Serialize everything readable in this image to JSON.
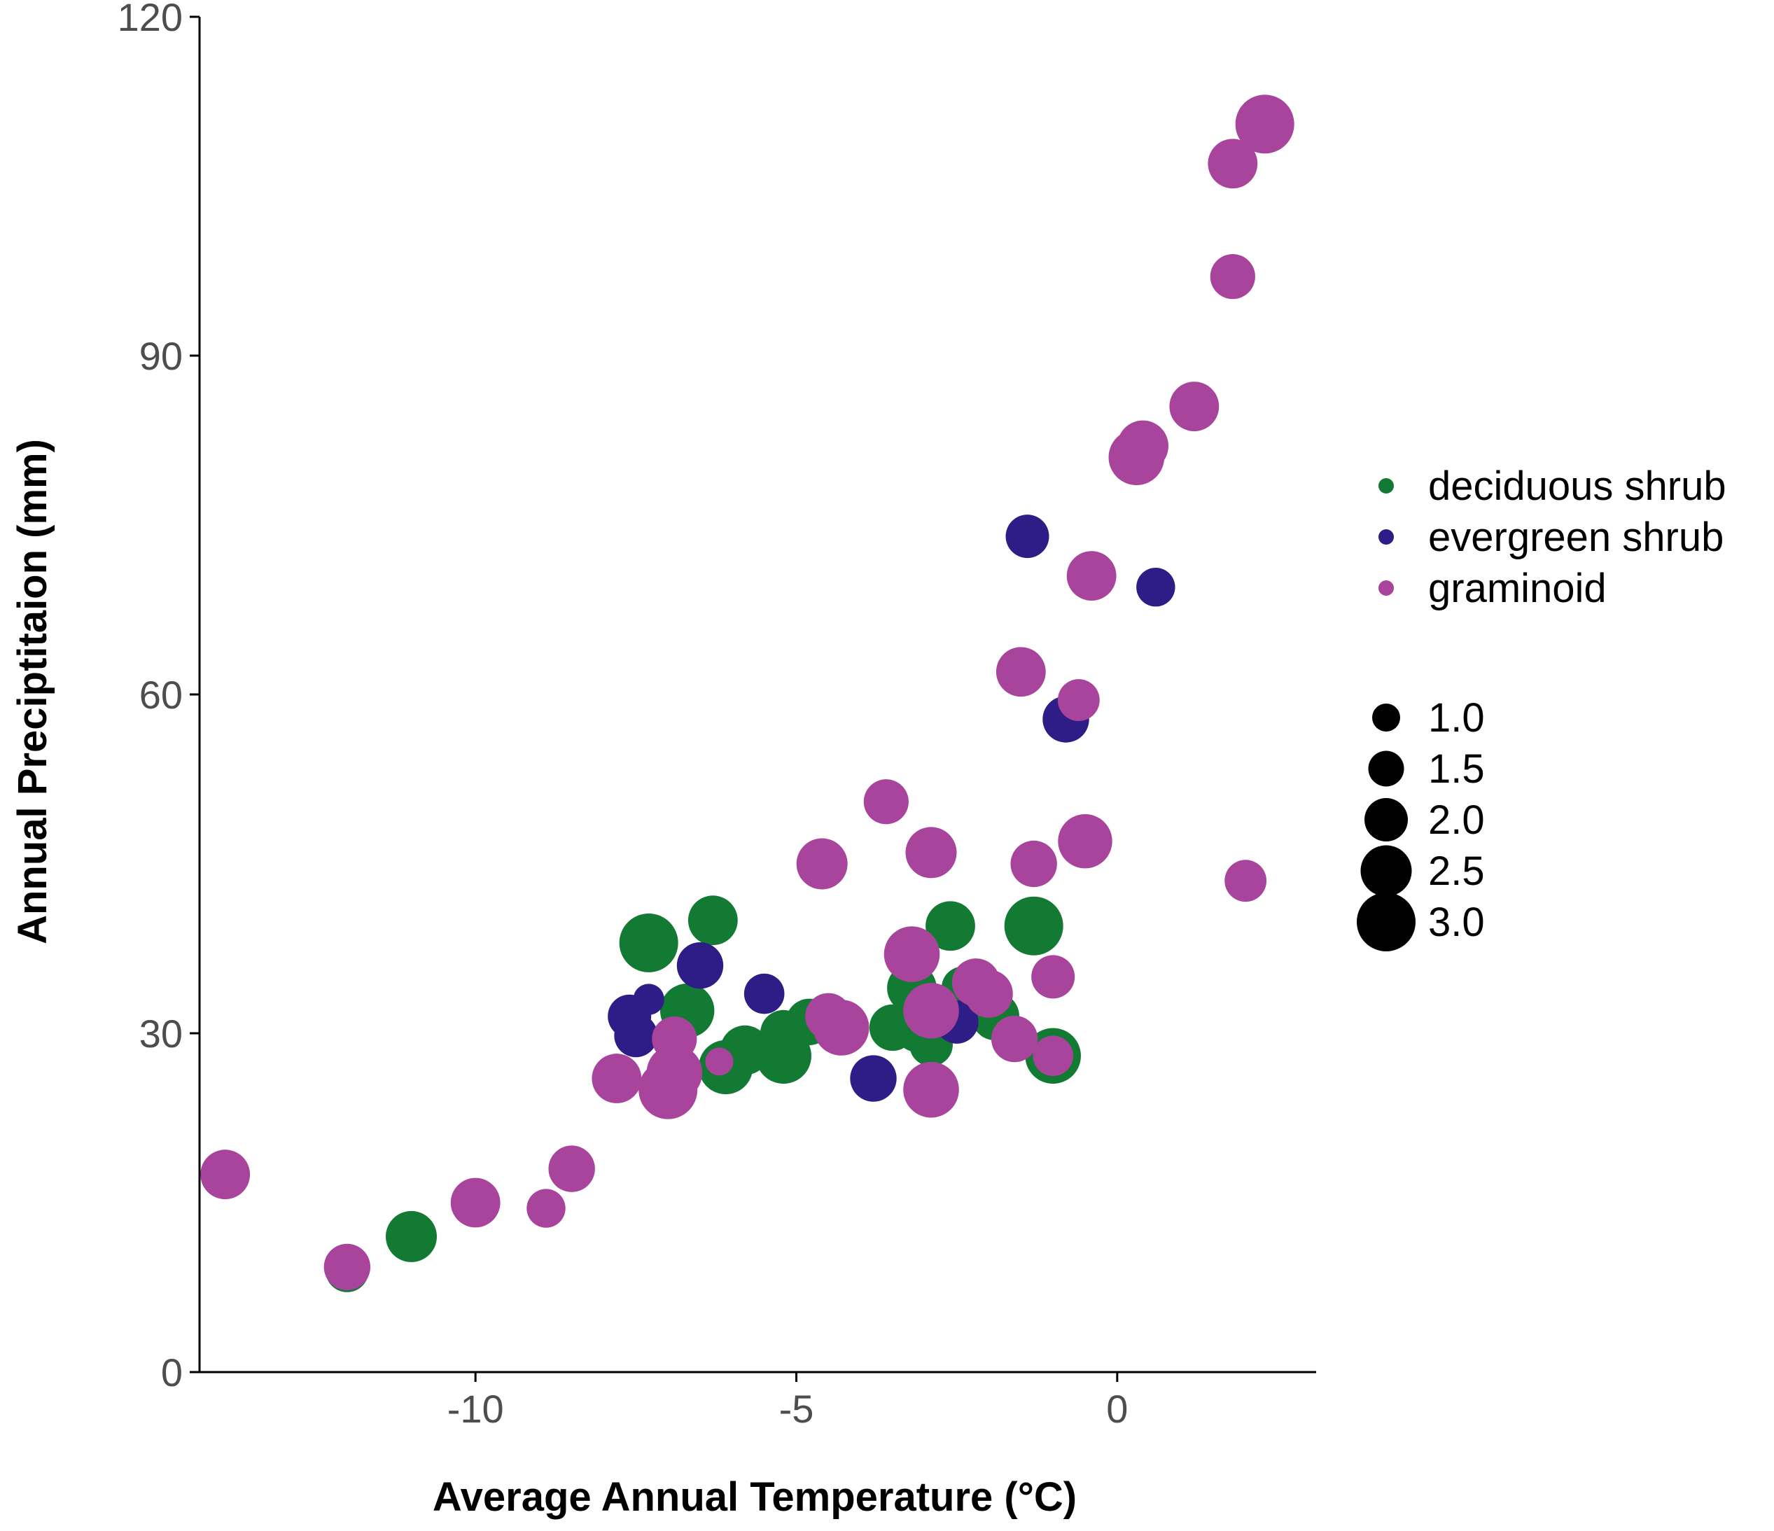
{
  "chart_data": {
    "type": "scatter",
    "xlabel": "Average Annual Temperature (°C)",
    "ylabel": "Annual Preciptitaion (mm)",
    "xlim": [
      -14.3,
      3.1
    ],
    "ylim": [
      0,
      120
    ],
    "x_ticks": [
      -10,
      -5,
      0
    ],
    "x_tick_labels": [
      "-10",
      "-5",
      "0"
    ],
    "y_ticks": [
      0,
      30,
      60,
      90,
      120
    ],
    "y_tick_labels": [
      "0",
      "30",
      "60",
      "90",
      "120"
    ],
    "grid": false,
    "legend_position": "right",
    "colors": {
      "deciduous shrub": "#137a33",
      "evergreen shrub": "#2e1d86",
      "graminoid": "#a8449b"
    },
    "size_legend": {
      "values": [
        1.0,
        1.5,
        2.0,
        2.5,
        3.0
      ],
      "labels": [
        "1.0",
        "1.5",
        "2.0",
        "2.5",
        "3.0"
      ]
    },
    "series": [
      {
        "name": "deciduous shrub",
        "points": [
          {
            "x": -12.0,
            "y": 9.0,
            "size": 2.0
          },
          {
            "x": -11.0,
            "y": 12.0,
            "size": 2.5
          },
          {
            "x": -7.5,
            "y": 30.0,
            "size": 1.8
          },
          {
            "x": -7.3,
            "y": 38.0,
            "size": 3.0
          },
          {
            "x": -6.7,
            "y": 32.0,
            "size": 2.7
          },
          {
            "x": -6.3,
            "y": 40.0,
            "size": 2.4
          },
          {
            "x": -6.1,
            "y": 27.0,
            "size": 2.7
          },
          {
            "x": -5.8,
            "y": 28.5,
            "size": 2.4
          },
          {
            "x": -5.2,
            "y": 30.0,
            "size": 2.2
          },
          {
            "x": -5.2,
            "y": 28.0,
            "size": 2.8
          },
          {
            "x": -4.8,
            "y": 31.0,
            "size": 2.2
          },
          {
            "x": -3.5,
            "y": 30.5,
            "size": 2.2
          },
          {
            "x": -3.2,
            "y": 34.0,
            "size": 2.4
          },
          {
            "x": -3.1,
            "y": 30.5,
            "size": 2.4
          },
          {
            "x": -2.9,
            "y": 29.0,
            "size": 2.0
          },
          {
            "x": -2.6,
            "y": 39.5,
            "size": 2.4
          },
          {
            "x": -2.4,
            "y": 34.0,
            "size": 2.0
          },
          {
            "x": -1.9,
            "y": 31.5,
            "size": 2.3
          },
          {
            "x": -1.3,
            "y": 39.5,
            "size": 3.0
          },
          {
            "x": -1.0,
            "y": 28.0,
            "size": 2.8
          }
        ]
      },
      {
        "name": "evergreen shrub",
        "points": [
          {
            "x": -7.6,
            "y": 31.5,
            "size": 2.0
          },
          {
            "x": -7.5,
            "y": 29.8,
            "size": 2.0
          },
          {
            "x": -7.3,
            "y": 33.0,
            "size": 1.2
          },
          {
            "x": -6.5,
            "y": 36.0,
            "size": 2.2
          },
          {
            "x": -5.5,
            "y": 33.5,
            "size": 1.8
          },
          {
            "x": -3.8,
            "y": 26.0,
            "size": 2.2
          },
          {
            "x": -2.5,
            "y": 31.0,
            "size": 2.0
          },
          {
            "x": -1.4,
            "y": 74.0,
            "size": 2.0
          },
          {
            "x": -0.8,
            "y": 57.8,
            "size": 2.2
          },
          {
            "x": 0.6,
            "y": 69.5,
            "size": 1.7
          }
        ]
      },
      {
        "name": "graminoid",
        "points": [
          {
            "x": -13.9,
            "y": 17.5,
            "size": 2.4
          },
          {
            "x": -12.0,
            "y": 9.3,
            "size": 2.2
          },
          {
            "x": -10.0,
            "y": 15.0,
            "size": 2.4
          },
          {
            "x": -8.9,
            "y": 14.5,
            "size": 1.7
          },
          {
            "x": -8.5,
            "y": 18.0,
            "size": 2.2
          },
          {
            "x": -7.8,
            "y": 26.0,
            "size": 2.4
          },
          {
            "x": -7.0,
            "y": 25.0,
            "size": 3.0
          },
          {
            "x": -6.9,
            "y": 29.5,
            "size": 2.1
          },
          {
            "x": -6.9,
            "y": 26.5,
            "size": 2.8
          },
          {
            "x": -6.2,
            "y": 27.5,
            "size": 1.0
          },
          {
            "x": -4.6,
            "y": 45.0,
            "size": 2.5
          },
          {
            "x": -4.5,
            "y": 31.5,
            "size": 2.2
          },
          {
            "x": -4.3,
            "y": 30.5,
            "size": 2.8
          },
          {
            "x": -3.6,
            "y": 50.5,
            "size": 2.1
          },
          {
            "x": -3.2,
            "y": 37.0,
            "size": 2.8
          },
          {
            "x": -2.9,
            "y": 46.0,
            "size": 2.5
          },
          {
            "x": -2.9,
            "y": 32.0,
            "size": 2.8
          },
          {
            "x": -2.9,
            "y": 25.0,
            "size": 2.8
          },
          {
            "x": -2.2,
            "y": 34.5,
            "size": 2.3
          },
          {
            "x": -2.0,
            "y": 33.5,
            "size": 2.3
          },
          {
            "x": -1.6,
            "y": 29.5,
            "size": 2.2
          },
          {
            "x": -1.5,
            "y": 62.0,
            "size": 2.4
          },
          {
            "x": -1.3,
            "y": 45.0,
            "size": 2.2
          },
          {
            "x": -1.0,
            "y": 35.0,
            "size": 2.0
          },
          {
            "x": -1.0,
            "y": 28.0,
            "size": 1.8
          },
          {
            "x": -0.6,
            "y": 59.5,
            "size": 1.9
          },
          {
            "x": -0.5,
            "y": 47.0,
            "size": 2.7
          },
          {
            "x": -0.4,
            "y": 70.5,
            "size": 2.4
          },
          {
            "x": 0.3,
            "y": 81.0,
            "size": 2.8
          },
          {
            "x": 0.4,
            "y": 82.0,
            "size": 2.5
          },
          {
            "x": 1.2,
            "y": 85.5,
            "size": 2.4
          },
          {
            "x": 1.8,
            "y": 107.0,
            "size": 2.4
          },
          {
            "x": 1.8,
            "y": 97.0,
            "size": 2.1
          },
          {
            "x": 2.0,
            "y": 43.5,
            "size": 1.9
          },
          {
            "x": 2.3,
            "y": 110.5,
            "size": 3.0
          }
        ]
      }
    ]
  }
}
